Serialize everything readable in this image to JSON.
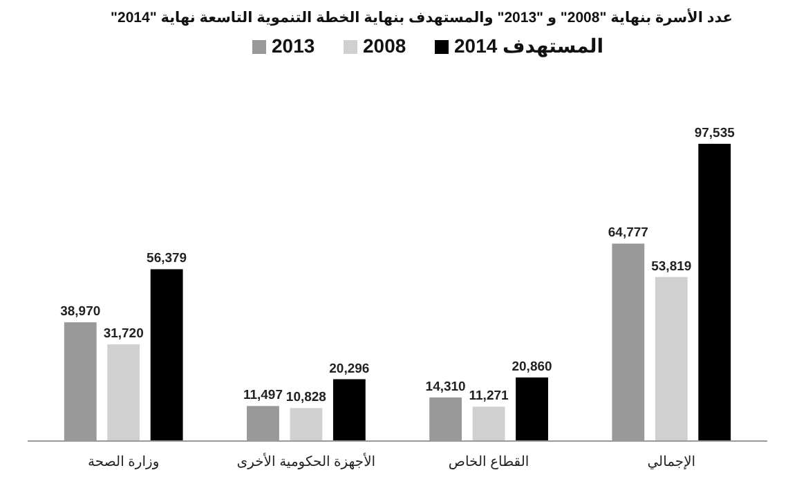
{
  "chart_data": {
    "type": "bar",
    "title": "عدد الأسرة بنهاية \"2008\" و \"2013\" والمستهدف بنهاية الخطة التنموية التاسعة نهاية \"2014\"",
    "categories": [
      "وزارة الصحة",
      "الأجهزة الحكومية الأخرى",
      "القطاع الخاص",
      "الإجمالي"
    ],
    "series": [
      {
        "name": "2013",
        "color": "#999999",
        "values": [
          38970,
          11497,
          14310,
          64777
        ],
        "value_labels": [
          "38,970",
          "11,497",
          "14,310",
          "64,777"
        ]
      },
      {
        "name": "2008",
        "color": "#d0d0d0",
        "values": [
          31720,
          10828,
          11271,
          53819
        ],
        "value_labels": [
          "31,720",
          "10,828",
          "11,271",
          "53,819"
        ]
      },
      {
        "name": "المستهدف 2014",
        "color": "#000000",
        "values": [
          56379,
          20296,
          20860,
          97535
        ],
        "value_labels": [
          "56,379",
          "20,296",
          "20,860",
          "97,535"
        ]
      }
    ],
    "legend": "top",
    "grid": false
  }
}
